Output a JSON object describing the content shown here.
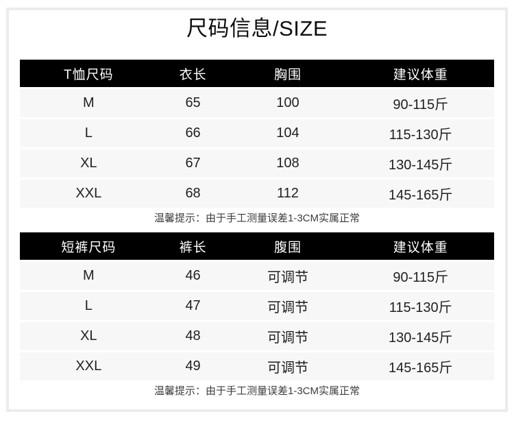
{
  "title": "尺码信息/SIZE",
  "colors": {
    "header_bg": "#000000",
    "header_text": "#ffffff",
    "row_bg": "#f7f7f7",
    "frame_border": "#ececec",
    "text": "#1f1f1f"
  },
  "tables": [
    {
      "headers": [
        "T恤尺码",
        "衣长",
        "胸围",
        "建议体重"
      ],
      "rows": [
        [
          "M",
          "65",
          "100",
          "90-115斤"
        ],
        [
          "L",
          "66",
          "104",
          "115-130斤"
        ],
        [
          "XL",
          "67",
          "108",
          "130-145斤"
        ],
        [
          "XXL",
          "68",
          "112",
          "145-165斤"
        ]
      ],
      "note": "温馨提示：由于手工测量误差1-3CM实属正常"
    },
    {
      "headers": [
        "短裤尺码",
        "裤长",
        "腹围",
        "建议体重"
      ],
      "rows": [
        [
          "M",
          "46",
          "可调节",
          "90-115斤"
        ],
        [
          "L",
          "47",
          "可调节",
          "115-130斤"
        ],
        [
          "XL",
          "48",
          "可调节",
          "130-145斤"
        ],
        [
          "XXL",
          "49",
          "可调节",
          "145-165斤"
        ]
      ],
      "note": "温馨提示：由于手工测量误差1-3CM实属正常"
    }
  ]
}
